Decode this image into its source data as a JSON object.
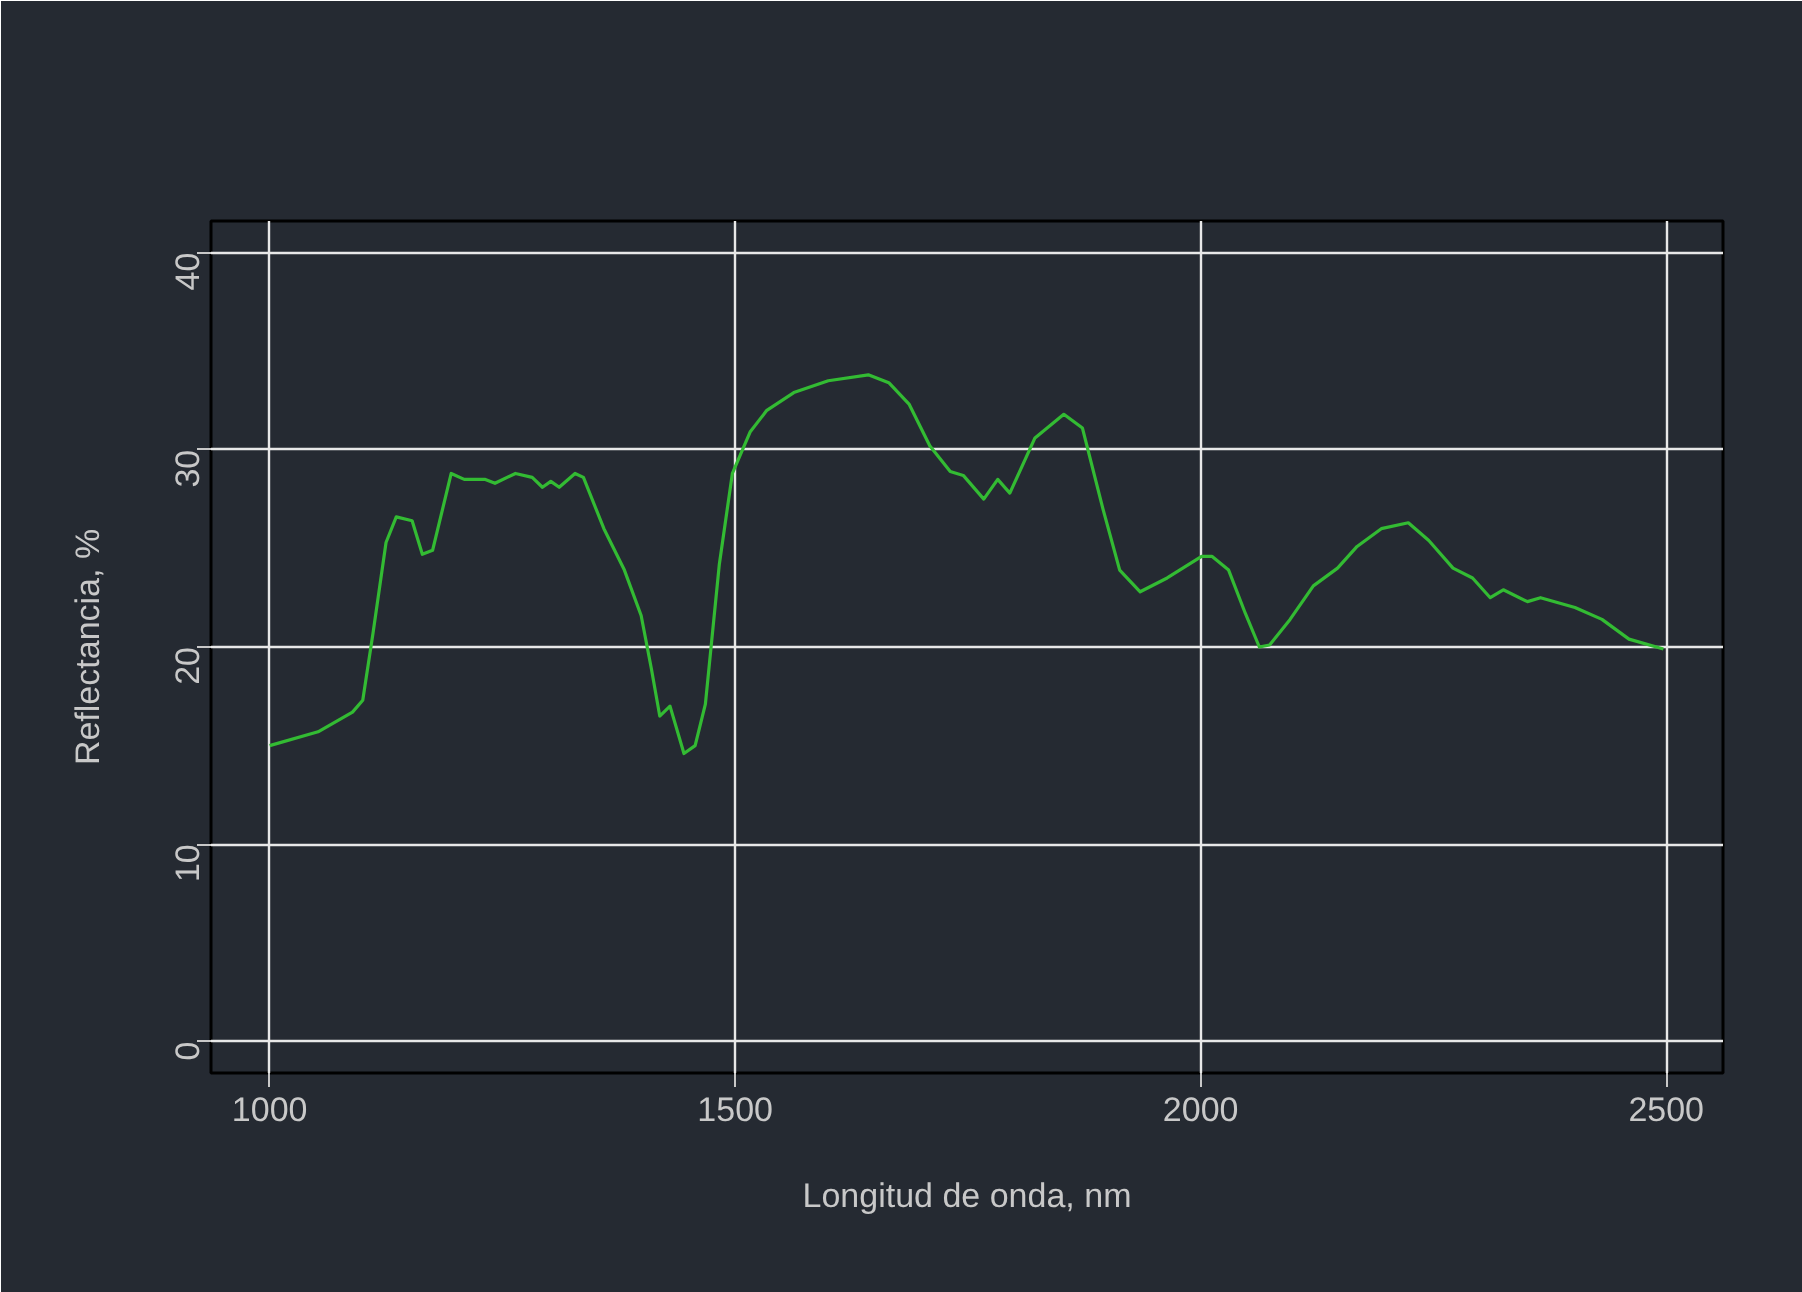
{
  "chart_data": {
    "type": "line",
    "xlabel": "Longitud de onda, nm",
    "ylabel": "Reflectancia, %",
    "xlim": [
      937,
      2561
    ],
    "ylim": [
      -1.6,
      41.6
    ],
    "xticks": [
      1000,
      1500,
      2000,
      2500
    ],
    "yticks": [
      0,
      10,
      20,
      30,
      40
    ],
    "grid": true,
    "series": [
      {
        "color": "#33bb33",
        "x": [
          1000,
          1052,
          1089,
          1100,
          1111,
          1125,
          1136,
          1153,
          1164,
          1175,
          1195,
          1209,
          1231,
          1242,
          1264,
          1282,
          1293,
          1302,
          1311,
          1328,
          1337,
          1359,
          1381,
          1399,
          1410,
          1419,
          1430,
          1445,
          1457,
          1468,
          1483,
          1497,
          1516,
          1534,
          1563,
          1600,
          1643,
          1665,
          1687,
          1709,
          1731,
          1745,
          1767,
          1782,
          1795,
          1822,
          1853,
          1873,
          1895,
          1913,
          1935,
          1964,
          2001,
          2012,
          2030,
          2048,
          2063,
          2074,
          2096,
          2121,
          2147,
          2168,
          2194,
          2223,
          2245,
          2271,
          2292,
          2311,
          2325,
          2351,
          2365,
          2402,
          2431,
          2460,
          2497
        ],
        "values": [
          15.0,
          15.7,
          16.7,
          17.3,
          20.7,
          25.3,
          26.6,
          26.4,
          24.7,
          24.9,
          28.8,
          28.5,
          28.5,
          28.3,
          28.8,
          28.6,
          28.1,
          28.4,
          28.1,
          28.8,
          28.6,
          26.0,
          23.9,
          21.6,
          18.9,
          16.5,
          17.0,
          14.6,
          15.0,
          17.1,
          24.2,
          28.8,
          30.9,
          32.0,
          32.9,
          33.5,
          33.8,
          33.4,
          32.3,
          30.2,
          28.9,
          28.7,
          27.5,
          28.5,
          27.8,
          30.6,
          31.8,
          31.1,
          27.0,
          23.9,
          22.8,
          23.5,
          24.6,
          24.6,
          23.9,
          21.7,
          20.0,
          20.1,
          21.4,
          23.1,
          24.0,
          25.1,
          26.0,
          26.3,
          25.4,
          24.0,
          23.5,
          22.5,
          22.9,
          22.3,
          22.5,
          22.0,
          21.4,
          20.4,
          19.9
        ]
      }
    ]
  }
}
